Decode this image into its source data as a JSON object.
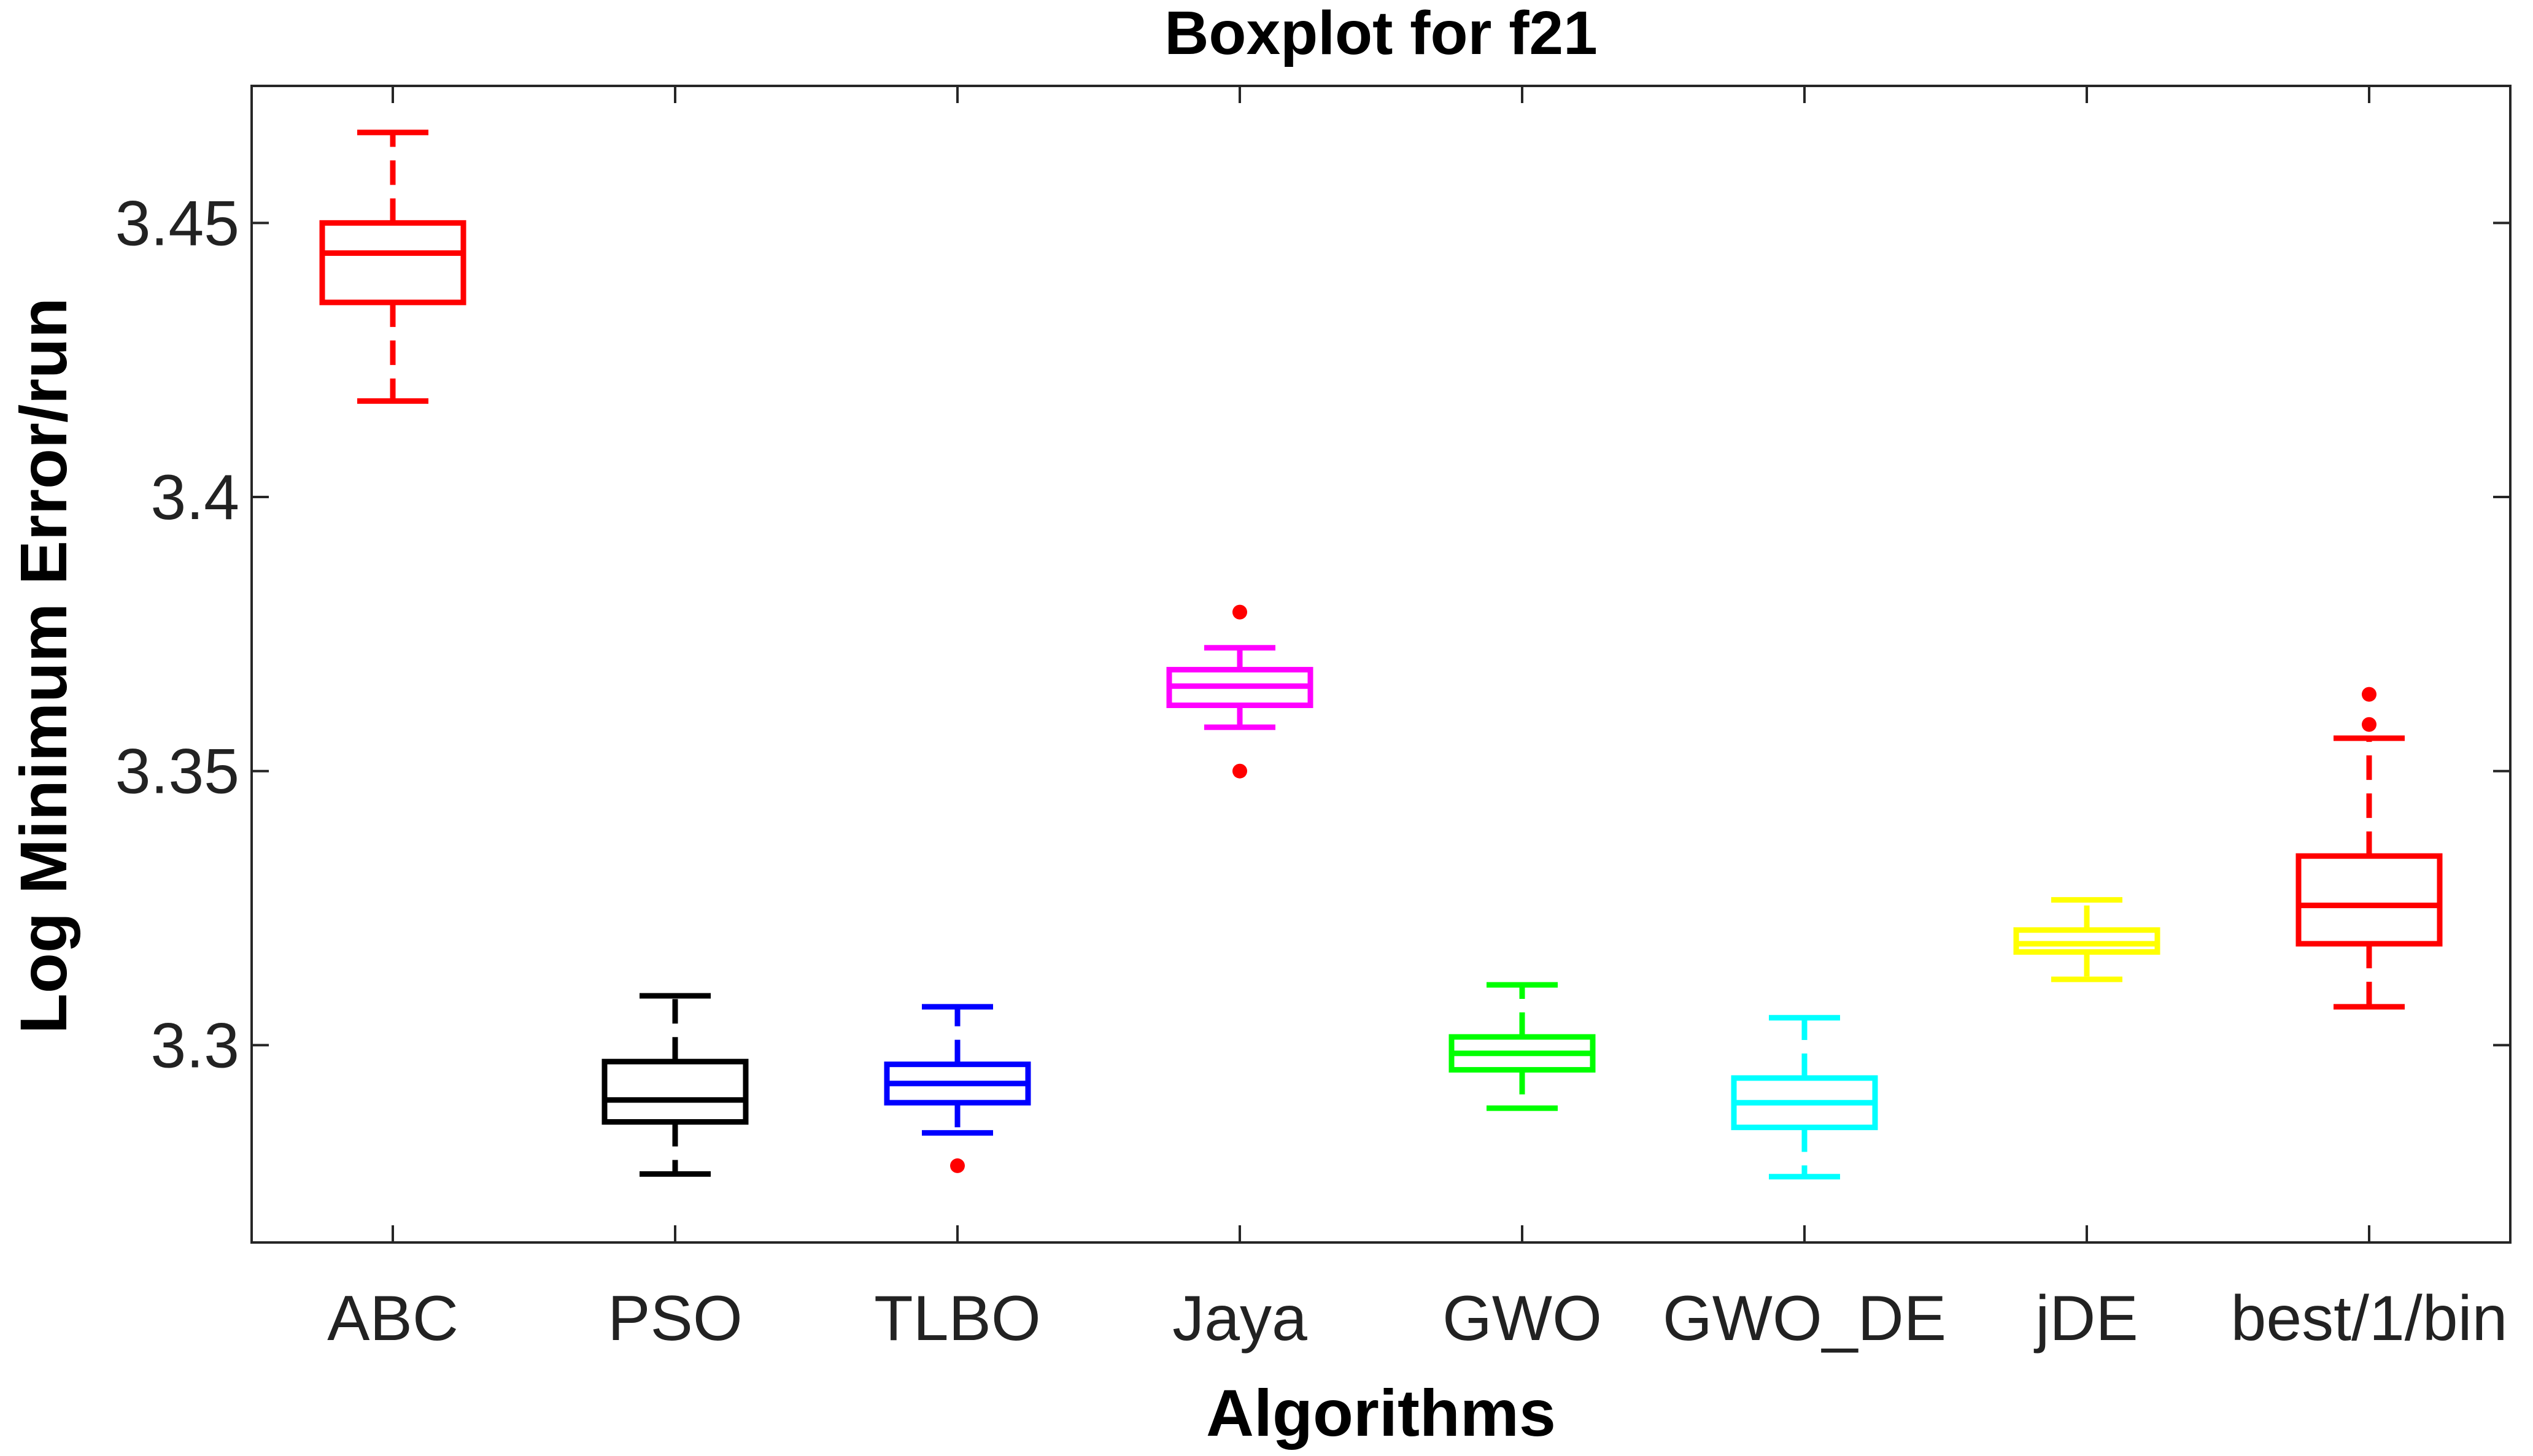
{
  "chart_data": {
    "type": "boxplot",
    "title": "Boxplot for f21",
    "xlabel": "Algorithms",
    "ylabel": "Log Minimum Error/run",
    "ylim": [
      3.264,
      3.475
    ],
    "yticks": [
      "3.3",
      "3.35",
      "3.4",
      "3.45"
    ],
    "ytick_values": [
      3.3,
      3.35,
      3.4,
      3.45
    ],
    "categories": [
      "ABC",
      "PSO",
      "TLBO",
      "Jaya",
      "GWO",
      "GWO_DE",
      "jDE",
      "best/1/bin"
    ],
    "outlier_color": "#ff0000",
    "series": [
      {
        "color": "#ff0000",
        "whisker_low": 3.4175,
        "q1": 3.4355,
        "median": 3.4445,
        "q3": 3.45,
        "whisker_high": 3.4665,
        "outliers": []
      },
      {
        "color": "#000000",
        "whisker_low": 3.2765,
        "q1": 3.286,
        "median": 3.29,
        "q3": 3.297,
        "whisker_high": 3.309,
        "outliers": []
      },
      {
        "color": "#0000ff",
        "whisker_low": 3.284,
        "q1": 3.2895,
        "median": 3.293,
        "q3": 3.2965,
        "whisker_high": 3.307,
        "outliers": [
          3.278
        ]
      },
      {
        "color": "#ff00ff",
        "whisker_low": 3.358,
        "q1": 3.362,
        "median": 3.3655,
        "q3": 3.3685,
        "whisker_high": 3.3725,
        "outliers": [
          3.379,
          3.35
        ]
      },
      {
        "color": "#00ff00",
        "whisker_low": 3.2885,
        "q1": 3.2955,
        "median": 3.2985,
        "q3": 3.3015,
        "whisker_high": 3.311,
        "outliers": []
      },
      {
        "color": "#00ffff",
        "whisker_low": 3.276,
        "q1": 3.285,
        "median": 3.2895,
        "q3": 3.294,
        "whisker_high": 3.305,
        "outliers": []
      },
      {
        "color": "#ffff00",
        "whisker_low": 3.312,
        "q1": 3.317,
        "median": 3.3185,
        "q3": 3.321,
        "whisker_high": 3.3265,
        "outliers": []
      },
      {
        "color": "#ff0000",
        "whisker_low": 3.307,
        "q1": 3.3185,
        "median": 3.3255,
        "q3": 3.3345,
        "whisker_high": 3.356,
        "outliers": [
          3.364,
          3.3585
        ]
      }
    ]
  }
}
